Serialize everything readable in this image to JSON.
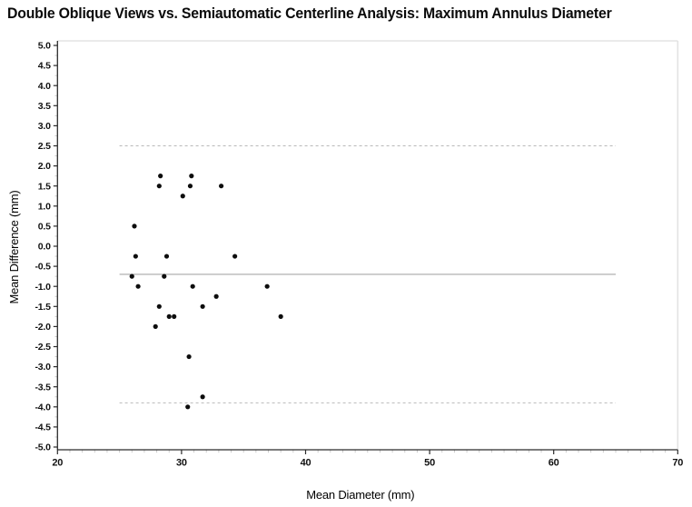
{
  "title": "Double Oblique Views vs. Semiautomatic Centerline Analysis: Maximum Annulus Diameter",
  "chart_data": {
    "type": "scatter",
    "title": "Double Oblique Views vs. Semiautomatic Centerline Analysis: Maximum Annulus Diameter",
    "xlabel": "Mean Diameter (mm)",
    "ylabel": "Mean Difference (mm)",
    "xlim": [
      20,
      70
    ],
    "ylim": [
      -5.0,
      5.0
    ],
    "grid": false,
    "legend": "none",
    "x_major_ticks": [
      "20",
      "30",
      "40",
      "50",
      "60",
      "70"
    ],
    "x_minor_step": 1,
    "y_major_ticks": [
      "5.0",
      "4.5",
      "4.0",
      "3.5",
      "3.0",
      "2.5",
      "2.0",
      "1.5",
      "1.0",
      "0.5",
      "0.0",
      "-0.5",
      "-1.0",
      "-1.5",
      "-2.0",
      "-2.5",
      "-3.0",
      "-3.5",
      "-4.0",
      "-4.5",
      "-5.0"
    ],
    "y_minor_step": 0.25,
    "points": [
      [
        28.3,
        1.75
      ],
      [
        30.8,
        1.75
      ],
      [
        28.2,
        1.5
      ],
      [
        30.7,
        1.5
      ],
      [
        33.2,
        1.5
      ],
      [
        30.1,
        1.25
      ],
      [
        26.2,
        0.5
      ],
      [
        26.3,
        -0.25
      ],
      [
        28.8,
        -0.25
      ],
      [
        34.3,
        -0.25
      ],
      [
        26.0,
        -0.75
      ],
      [
        28.6,
        -0.75
      ],
      [
        26.5,
        -1.0
      ],
      [
        30.9,
        -1.0
      ],
      [
        36.9,
        -1.0
      ],
      [
        32.8,
        -1.25
      ],
      [
        28.2,
        -1.5
      ],
      [
        31.7,
        -1.5
      ],
      [
        29.0,
        -1.75
      ],
      [
        29.4,
        -1.75
      ],
      [
        38.0,
        -1.75
      ],
      [
        27.9,
        -2.0
      ],
      [
        30.6,
        -2.75
      ],
      [
        31.7,
        -3.75
      ],
      [
        30.5,
        -4.0
      ]
    ],
    "reference_lines": {
      "mean_line": {
        "value": -0.7,
        "style": "solid"
      },
      "upper_limit_line": {
        "value": 2.5,
        "style": "dashed"
      },
      "lower_limit_line": {
        "value": -3.9,
        "style": "dashed"
      },
      "x_start": 25,
      "x_end": 65
    },
    "colors": {
      "point": "#0d0d0d",
      "mean_line": "#a8a8a8",
      "limit_line": "#b9b9b9",
      "axis": "#2b2b2b",
      "frame_light": "#e3e3e3",
      "minor_tick": "#c9c9c9"
    },
    "point_radius": 2.6
  }
}
